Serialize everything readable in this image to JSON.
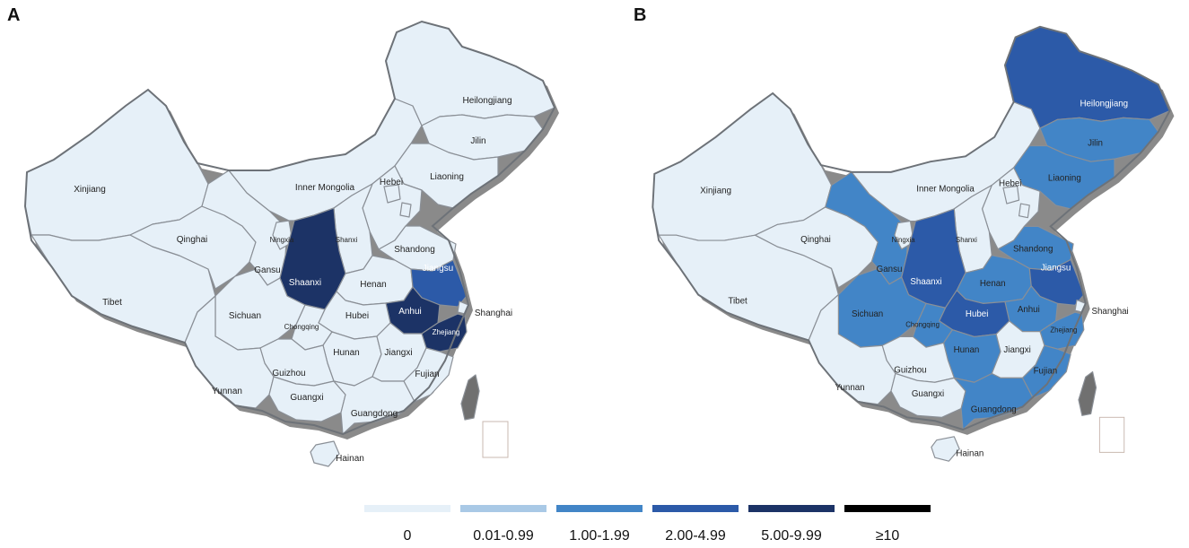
{
  "panels": [
    {
      "letter": "A",
      "provinces": {
        "Xinjiang": 0,
        "Tibet": 0,
        "Qinghai": 0,
        "Gansu": 0,
        "Ningxia": 0,
        "Inner Mongolia": 0,
        "Heilongjiang": 0,
        "Jilin": 0,
        "Liaoning": 0,
        "Hebei": 0,
        "Beijing": 0,
        "Tianjin": 0,
        "Shanxi": 0,
        "Shaanxi": 4,
        "Henan": 0,
        "Shandong": 0,
        "Jiangsu": 3,
        "Anhui": 4,
        "Shanghai": 0,
        "Zhejiang": 4,
        "Hubei": 0,
        "Sichuan": 0,
        "Chongqing": 0,
        "Hunan": 0,
        "Jiangxi": 0,
        "Fujian": 0,
        "Guizhou": 0,
        "Yunnan": 0,
        "Guangxi": 0,
        "Guangdong": 0,
        "Hainan": 0,
        "Taiwan": 0
      }
    },
    {
      "letter": "B",
      "provinces": {
        "Xinjiang": 0,
        "Tibet": 0,
        "Qinghai": 0,
        "Gansu": 2,
        "Ningxia": 0,
        "Inner Mongolia": 0,
        "Heilongjiang": 3,
        "Jilin": 2,
        "Liaoning": 2,
        "Hebei": 0,
        "Beijing": 0,
        "Tianjin": 0,
        "Shanxi": 0,
        "Shaanxi": 3,
        "Henan": 2,
        "Shandong": 2,
        "Jiangsu": 3,
        "Anhui": 2,
        "Shanghai": 0,
        "Zhejiang": 2,
        "Hubei": 3,
        "Sichuan": 2,
        "Chongqing": 2,
        "Hunan": 2,
        "Jiangxi": 0,
        "Fujian": 2,
        "Guizhou": 0,
        "Yunnan": 0,
        "Guangxi": 0,
        "Guangdong": 2,
        "Hainan": 0,
        "Taiwan": 0
      }
    }
  ],
  "legend": [
    {
      "label": "0",
      "color": "#e6f0f8"
    },
    {
      "label": "0.01-0.99",
      "color": "#a9c9e6"
    },
    {
      "label": "1.00-1.99",
      "color": "#4285c7"
    },
    {
      "label": "2.00-4.99",
      "color": "#2c5aa8"
    },
    {
      "label": "5.00-9.99",
      "color": "#1c3366"
    },
    {
      "label": "≥10",
      "color": "#000000"
    }
  ]
}
